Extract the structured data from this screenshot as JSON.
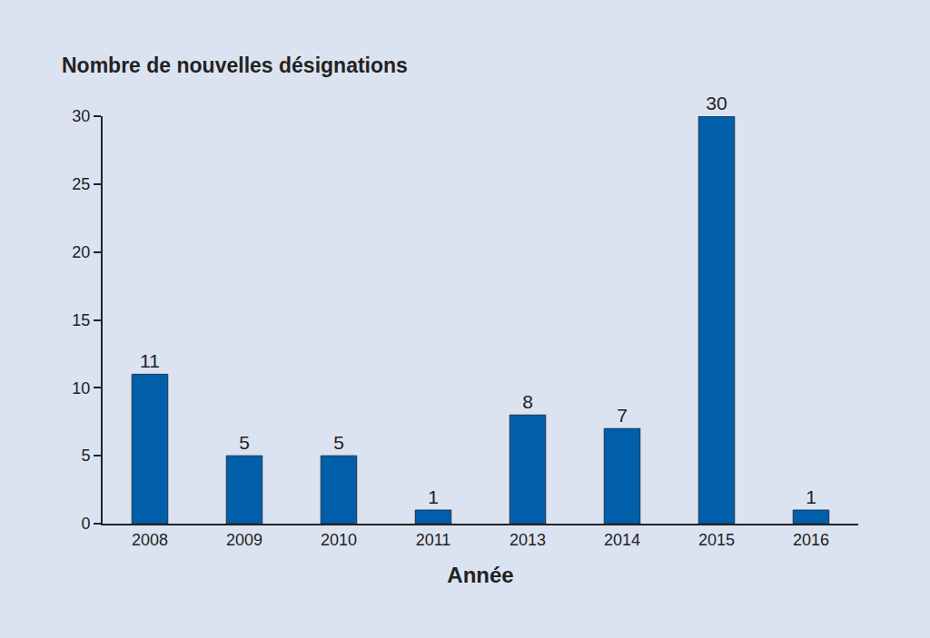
{
  "chart_data": {
    "type": "bar",
    "title": "Nombre de nouvelles désignations",
    "x_label": "Année",
    "categories": [
      "2008",
      "2009",
      "2010",
      "2011",
      "2013",
      "2014",
      "2015",
      "2016"
    ],
    "values": [
      11,
      5,
      5,
      1,
      8,
      7,
      30,
      1
    ],
    "color": "#005fa8",
    "ylim": [
      0,
      30
    ],
    "yticks": [
      0,
      5,
      10,
      15,
      20,
      25,
      30
    ],
    "grid": false,
    "data_labels": true
  }
}
